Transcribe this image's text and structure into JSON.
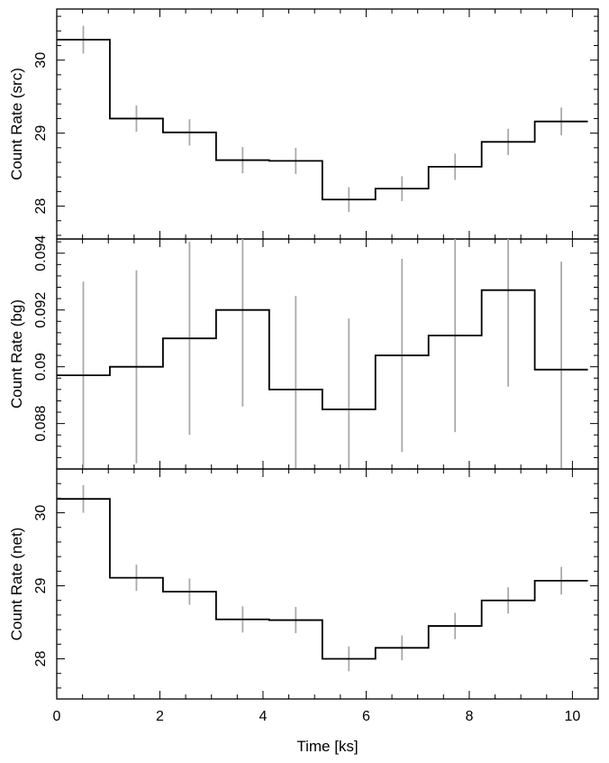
{
  "chart_data": [
    {
      "type": "line",
      "panel": "src",
      "ylabel": "Count Rate (src)",
      "xlim": [
        0,
        10.5
      ],
      "ylim": [
        27.55,
        30.7
      ],
      "yticks": [
        28,
        29,
        30
      ],
      "bin_edges": [
        0,
        1.03,
        2.06,
        3.09,
        4.12,
        5.15,
        6.18,
        7.21,
        8.24,
        9.27,
        10.3
      ],
      "values": [
        30.28,
        29.2,
        29.01,
        28.63,
        28.62,
        28.09,
        28.24,
        28.54,
        28.88,
        29.16
      ],
      "errors": [
        0.19,
        0.18,
        0.18,
        0.18,
        0.18,
        0.17,
        0.17,
        0.18,
        0.18,
        0.19
      ],
      "color_step": "#000000",
      "color_errorbar": "#aaaaaa"
    },
    {
      "type": "line",
      "panel": "bg",
      "ylabel": "Count Rate (bg)",
      "xlim": [
        0,
        10.5
      ],
      "ylim": [
        0.0864,
        0.0945
      ],
      "yticks": [
        0.088,
        0.09,
        0.092,
        0.094
      ],
      "bin_edges": [
        0,
        1.03,
        2.06,
        3.09,
        4.12,
        5.15,
        6.18,
        7.21,
        8.24,
        9.27,
        10.3
      ],
      "values": [
        0.0897,
        0.09,
        0.091,
        0.092,
        0.0892,
        0.0885,
        0.0904,
        0.0911,
        0.0927,
        0.0899
      ],
      "errors": [
        0.0033,
        0.0034,
        0.0034,
        0.0034,
        0.0033,
        0.0032,
        0.0034,
        0.0034,
        0.0034,
        0.0038
      ],
      "color_step": "#000000",
      "color_errorbar": "#aaaaaa"
    },
    {
      "type": "line",
      "panel": "net",
      "ylabel": "Count Rate (net)",
      "xlabel": "Time [ks]",
      "xlim": [
        0,
        10.5
      ],
      "xticks": [
        0,
        2,
        4,
        6,
        8,
        10
      ],
      "ylim": [
        27.45,
        30.6
      ],
      "yticks": [
        28,
        29,
        30
      ],
      "bin_edges": [
        0,
        1.03,
        2.06,
        3.09,
        4.12,
        5.15,
        6.18,
        7.21,
        8.24,
        9.27,
        10.3
      ],
      "values": [
        30.19,
        29.11,
        28.92,
        28.54,
        28.53,
        28.0,
        28.15,
        28.45,
        28.8,
        29.07
      ],
      "errors": [
        0.19,
        0.18,
        0.18,
        0.18,
        0.18,
        0.17,
        0.17,
        0.18,
        0.18,
        0.19
      ],
      "color_step": "#000000",
      "color_errorbar": "#aaaaaa"
    }
  ]
}
